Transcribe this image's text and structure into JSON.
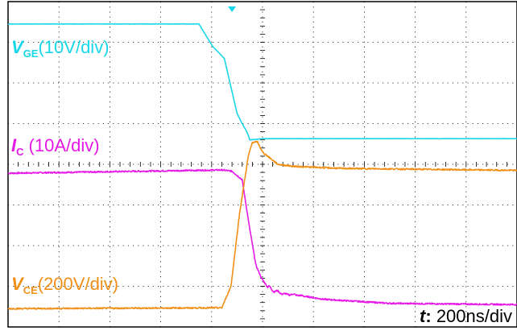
{
  "chart_data": {
    "type": "line",
    "title": "",
    "xlabel": "",
    "ylabel": "",
    "grid": true,
    "grid_divisions": {
      "x": 10,
      "y": 8
    },
    "xlim": [
      0,
      10
    ],
    "ylim": [
      0,
      8
    ],
    "x_unit": "div",
    "y_unit": "div",
    "time_scale": {
      "symbol": "t",
      "value": "200ns/div"
    },
    "series": [
      {
        "name": "VGE",
        "symbol": "V",
        "subscript": "GE",
        "scale_text": "(10V/div)",
        "color": "#19d7e8",
        "points": [
          [
            0,
            7.45
          ],
          [
            3.75,
            7.45
          ],
          [
            4.02,
            6.9
          ],
          [
            4.25,
            6.6
          ],
          [
            4.38,
            5.9
          ],
          [
            4.5,
            5.25
          ],
          [
            4.6,
            5.0
          ],
          [
            4.7,
            4.78
          ],
          [
            4.75,
            4.6
          ],
          [
            5.0,
            4.63
          ],
          [
            10,
            4.63
          ]
        ]
      },
      {
        "name": "IC",
        "symbol": "I",
        "subscript": "C",
        "scale_text": "(10A/div)",
        "color": "#e619e6",
        "points": [
          [
            0,
            3.78
          ],
          [
            4.2,
            3.86
          ],
          [
            4.4,
            3.83
          ],
          [
            4.6,
            3.62
          ],
          [
            4.75,
            2.4
          ],
          [
            4.87,
            1.52
          ],
          [
            4.98,
            1.2
          ],
          [
            5.1,
            0.98
          ],
          [
            5.25,
            0.88
          ],
          [
            5.45,
            0.8
          ],
          [
            5.6,
            0.8
          ],
          [
            6.2,
            0.68
          ],
          [
            7.5,
            0.58
          ],
          [
            10,
            0.55
          ]
        ]
      },
      {
        "name": "VCE",
        "symbol": "V",
        "subscript": "CE",
        "scale_text": "(200V/div)",
        "color": "#f09018",
        "points": [
          [
            0,
            0.45
          ],
          [
            4.2,
            0.47
          ],
          [
            4.38,
            1.0
          ],
          [
            4.55,
            2.8
          ],
          [
            4.72,
            4.2
          ],
          [
            4.8,
            4.54
          ],
          [
            4.9,
            4.55
          ],
          [
            5.0,
            4.3
          ],
          [
            5.3,
            4.0
          ],
          [
            5.6,
            3.95
          ],
          [
            6.5,
            3.9
          ],
          [
            10,
            3.85
          ]
        ]
      }
    ],
    "trigger_marker": {
      "x": 4.4,
      "color": "#19d7e8"
    }
  }
}
